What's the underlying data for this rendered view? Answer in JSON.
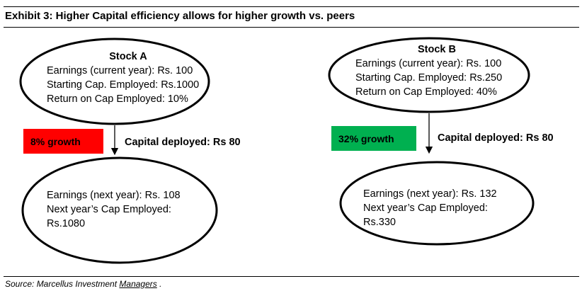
{
  "title": "Exhibit 3: Higher Capital efficiency allows for higher growth vs. peers",
  "stock_a": {
    "header": "Stock A",
    "current": [
      "Earnings (current year): Rs. 100",
      "Starting Cap. Employed: Rs.1000",
      "Return on Cap Employed: 10%"
    ],
    "growth_label": "8% growth",
    "growth_color": "#ff0000",
    "capital_deployed": "Capital deployed: Rs 80",
    "next": [
      "Earnings (next year): Rs. 108",
      "Next year’s Cap Employed:",
      "Rs.1080"
    ]
  },
  "stock_b": {
    "header": "Stock B",
    "current": [
      "Earnings (current year): Rs. 100",
      "Starting Cap. Employed: Rs.250",
      "Return on Cap Employed: 40%"
    ],
    "growth_label": "32% growth",
    "growth_color": "#00b050",
    "capital_deployed": "Capital deployed: Rs 80",
    "next": [
      "Earnings (next year): Rs. 132",
      "Next year’s Cap Employed:",
      "Rs.330"
    ]
  },
  "source": {
    "prefix": "Source: Marcellus Investment ",
    "link": "Managers",
    "suffix": " ."
  }
}
